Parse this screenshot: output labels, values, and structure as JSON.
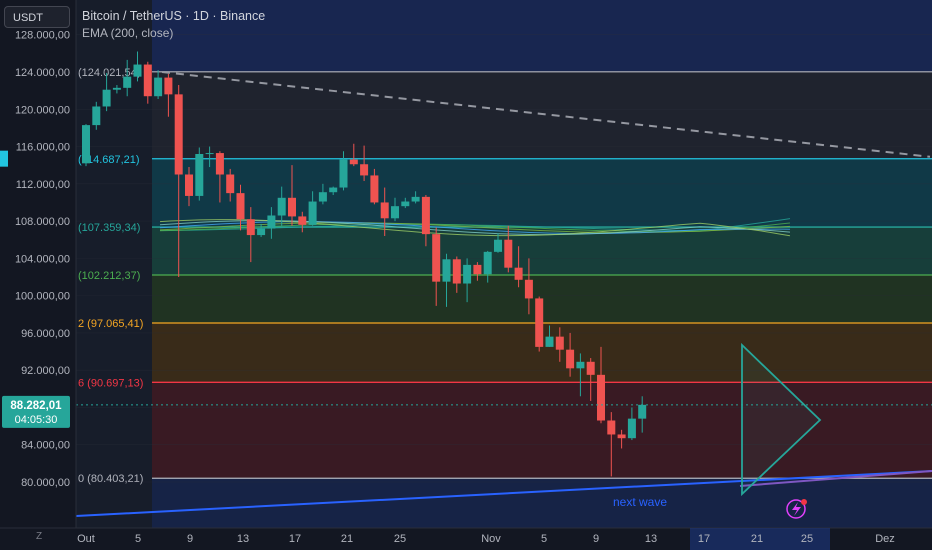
{
  "header": {
    "title": "Bitcoin / TetherUS · 1D · Binance",
    "indicator": "EMA (200, close)",
    "currency_button": "USDT"
  },
  "price_scale": {
    "ticks": [
      128000,
      124000,
      120000,
      116000,
      112000,
      108000,
      104000,
      100000,
      96000,
      92000,
      88000,
      84000,
      80000
    ],
    "tick_labels": [
      "128.000,00",
      "124.000,00",
      "120.000,00",
      "116.000,00",
      "112.000,00",
      "108.000,00",
      "104.000,00",
      "100.000,00",
      "96.000,00",
      "92.000,00",
      "88.000,00",
      "84.000,00",
      "80.000,00"
    ],
    "current_price": 88282.01,
    "current_price_label": "88.282,01",
    "countdown": "04:05:30"
  },
  "time_scale": {
    "labels": [
      "Out",
      "5",
      "9",
      "13",
      "17",
      "21",
      "25",
      "Nov",
      "5",
      "9",
      "13",
      "17",
      "21",
      "25",
      "Dez"
    ],
    "zoom_button": "Z"
  },
  "fib_levels": [
    {
      "label": "(124.021,54)",
      "price": 124021.54,
      "color": "#b2b5be"
    },
    {
      "label": "(114.687,21)",
      "price": 114687.21,
      "color": "#22c5e0"
    },
    {
      "label": "(107.359,34)",
      "price": 107359.34,
      "color": "#26a69a"
    },
    {
      "label": "(102.212,37)",
      "price": 102212.37,
      "color": "#4caf50"
    },
    {
      "label": "2 (97.065,41)",
      "price": 97065.41,
      "color": "#f5a623"
    },
    {
      "label": "6 (90.697,13)",
      "price": 90697.13,
      "color": "#f23645"
    },
    {
      "label": "0 (80.403,21)",
      "price": 80403.21,
      "color": "#b2b5be"
    }
  ],
  "annotation": {
    "text": "next wave",
    "color": "#2962ff"
  },
  "colors": {
    "up": "#26a69a",
    "down": "#ef5350",
    "background": "#131722"
  },
  "chart_data": {
    "type": "candlestick",
    "title": "Bitcoin / TetherUS · 1D · Binance",
    "candles": [
      {
        "date": "2025-10-01",
        "o": 114200,
        "h": 118400,
        "l": 113900,
        "c": 118300
      },
      {
        "date": "2025-10-02",
        "o": 118300,
        "h": 120800,
        "l": 117800,
        "c": 120300
      },
      {
        "date": "2025-10-03",
        "o": 120300,
        "h": 123900,
        "l": 119800,
        "c": 122100
      },
      {
        "date": "2025-10-04",
        "o": 122100,
        "h": 122600,
        "l": 121700,
        "c": 122300
      },
      {
        "date": "2025-10-05",
        "o": 122300,
        "h": 125300,
        "l": 121400,
        "c": 123500
      },
      {
        "date": "2025-10-06",
        "o": 123500,
        "h": 126200,
        "l": 123000,
        "c": 124800
      },
      {
        "date": "2025-10-07",
        "o": 124800,
        "h": 125100,
        "l": 120600,
        "c": 121400
      },
      {
        "date": "2025-10-08",
        "o": 121400,
        "h": 124200,
        "l": 121100,
        "c": 123400
      },
      {
        "date": "2025-10-09",
        "o": 123400,
        "h": 123800,
        "l": 119200,
        "c": 121600
      },
      {
        "date": "2025-10-10",
        "o": 121600,
        "h": 122600,
        "l": 102000,
        "c": 113000
      },
      {
        "date": "2025-10-11",
        "o": 113000,
        "h": 113800,
        "l": 109600,
        "c": 110700
      },
      {
        "date": "2025-10-12",
        "o": 110700,
        "h": 115900,
        "l": 110200,
        "c": 115200
      },
      {
        "date": "2025-10-13",
        "o": 115200,
        "h": 116000,
        "l": 113800,
        "c": 115300
      },
      {
        "date": "2025-10-14",
        "o": 115300,
        "h": 115500,
        "l": 110000,
        "c": 113000
      },
      {
        "date": "2025-10-15",
        "o": 113000,
        "h": 113600,
        "l": 110100,
        "c": 111000
      },
      {
        "date": "2025-10-16",
        "o": 111000,
        "h": 111900,
        "l": 107000,
        "c": 108200
      },
      {
        "date": "2025-10-17",
        "o": 108200,
        "h": 109500,
        "l": 103600,
        "c": 106500
      },
      {
        "date": "2025-10-18",
        "o": 106500,
        "h": 107700,
        "l": 106300,
        "c": 107200
      },
      {
        "date": "2025-10-19",
        "o": 107200,
        "h": 109500,
        "l": 106100,
        "c": 108600
      },
      {
        "date": "2025-10-20",
        "o": 108600,
        "h": 111700,
        "l": 107500,
        "c": 110500
      },
      {
        "date": "2025-10-21",
        "o": 110500,
        "h": 114000,
        "l": 107500,
        "c": 108500
      },
      {
        "date": "2025-10-22",
        "o": 108500,
        "h": 109000,
        "l": 106800,
        "c": 107600
      },
      {
        "date": "2025-10-23",
        "o": 107600,
        "h": 111200,
        "l": 107500,
        "c": 110100
      },
      {
        "date": "2025-10-24",
        "o": 110100,
        "h": 112000,
        "l": 109800,
        "c": 111100
      },
      {
        "date": "2025-10-25",
        "o": 111100,
        "h": 111700,
        "l": 110800,
        "c": 111600
      },
      {
        "date": "2025-10-26",
        "o": 111600,
        "h": 115500,
        "l": 111300,
        "c": 114600
      },
      {
        "date": "2025-10-27",
        "o": 114600,
        "h": 116300,
        "l": 113900,
        "c": 114100
      },
      {
        "date": "2025-10-28",
        "o": 114100,
        "h": 116100,
        "l": 112300,
        "c": 112900
      },
      {
        "date": "2025-10-29",
        "o": 112900,
        "h": 113600,
        "l": 109800,
        "c": 110000
      },
      {
        "date": "2025-10-30",
        "o": 110000,
        "h": 111600,
        "l": 106400,
        "c": 108300
      },
      {
        "date": "2025-10-31",
        "o": 108300,
        "h": 110500,
        "l": 108000,
        "c": 109600
      },
      {
        "date": "2025-11-01",
        "o": 109600,
        "h": 110500,
        "l": 109400,
        "c": 110100
      },
      {
        "date": "2025-11-02",
        "o": 110100,
        "h": 111200,
        "l": 109900,
        "c": 110600
      },
      {
        "date": "2025-11-03",
        "o": 110600,
        "h": 110800,
        "l": 105300,
        "c": 106600
      },
      {
        "date": "2025-11-04",
        "o": 106600,
        "h": 107300,
        "l": 98900,
        "c": 101500
      },
      {
        "date": "2025-11-05",
        "o": 101500,
        "h": 104500,
        "l": 98800,
        "c": 103900
      },
      {
        "date": "2025-11-06",
        "o": 103900,
        "h": 104200,
        "l": 100300,
        "c": 101300
      },
      {
        "date": "2025-11-07",
        "o": 101300,
        "h": 104000,
        "l": 99300,
        "c": 103300
      },
      {
        "date": "2025-11-08",
        "o": 103300,
        "h": 103600,
        "l": 101600,
        "c": 102300
      },
      {
        "date": "2025-11-09",
        "o": 102300,
        "h": 104800,
        "l": 101400,
        "c": 104700
      },
      {
        "date": "2025-11-10",
        "o": 104700,
        "h": 106700,
        "l": 104600,
        "c": 106000
      },
      {
        "date": "2025-11-11",
        "o": 106000,
        "h": 107500,
        "l": 102500,
        "c": 103000
      },
      {
        "date": "2025-11-12",
        "o": 103000,
        "h": 105300,
        "l": 100900,
        "c": 101700
      },
      {
        "date": "2025-11-13",
        "o": 101700,
        "h": 104000,
        "l": 98000,
        "c": 99700
      },
      {
        "date": "2025-11-14",
        "o": 99700,
        "h": 99900,
        "l": 94000,
        "c": 94500
      },
      {
        "date": "2025-11-15",
        "o": 94500,
        "h": 96800,
        "l": 94500,
        "c": 95600
      },
      {
        "date": "2025-11-16",
        "o": 95600,
        "h": 96600,
        "l": 92900,
        "c": 94200
      },
      {
        "date": "2025-11-17",
        "o": 94200,
        "h": 96000,
        "l": 91300,
        "c": 92200
      },
      {
        "date": "2025-11-18",
        "o": 92200,
        "h": 93800,
        "l": 89200,
        "c": 92900
      },
      {
        "date": "2025-11-19",
        "o": 92900,
        "h": 93300,
        "l": 88700,
        "c": 91500
      },
      {
        "date": "2025-11-20",
        "o": 91500,
        "h": 94500,
        "l": 86300,
        "c": 86600
      },
      {
        "date": "2025-11-21",
        "o": 86600,
        "h": 87500,
        "l": 80600,
        "c": 85100
      },
      {
        "date": "2025-11-22",
        "o": 85100,
        "h": 85600,
        "l": 83600,
        "c": 84700
      },
      {
        "date": "2025-11-23",
        "o": 84700,
        "h": 88000,
        "l": 84500,
        "c": 86800
      },
      {
        "date": "2025-11-24",
        "o": 86800,
        "h": 89200,
        "l": 85300,
        "c": 88282
      }
    ]
  }
}
